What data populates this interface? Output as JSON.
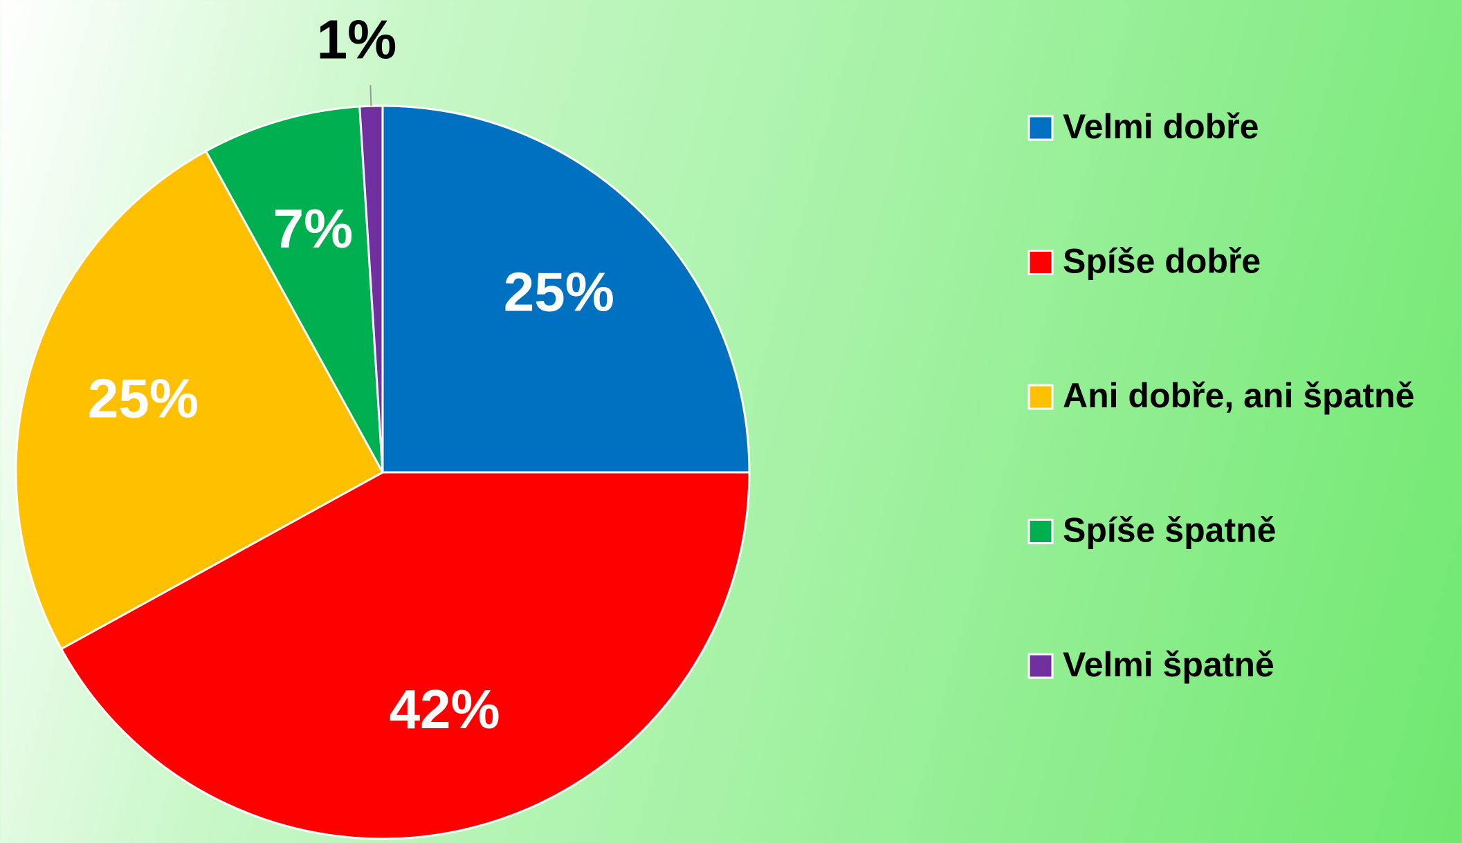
{
  "chart_data": {
    "type": "pie",
    "categories": [
      "Velmi dobře",
      "Spíše dobře",
      "Ani dobře, ani špatně",
      "Spíše špatně",
      "Velmi špatně"
    ],
    "values": [
      25,
      42,
      25,
      7,
      1
    ],
    "value_labels": [
      "25%",
      "42%",
      "25%",
      "7%",
      "1%"
    ],
    "colors": [
      "#0070c0",
      "#ff0000",
      "#ffc000",
      "#00b050",
      "#7030a0"
    ],
    "legend": "right"
  }
}
